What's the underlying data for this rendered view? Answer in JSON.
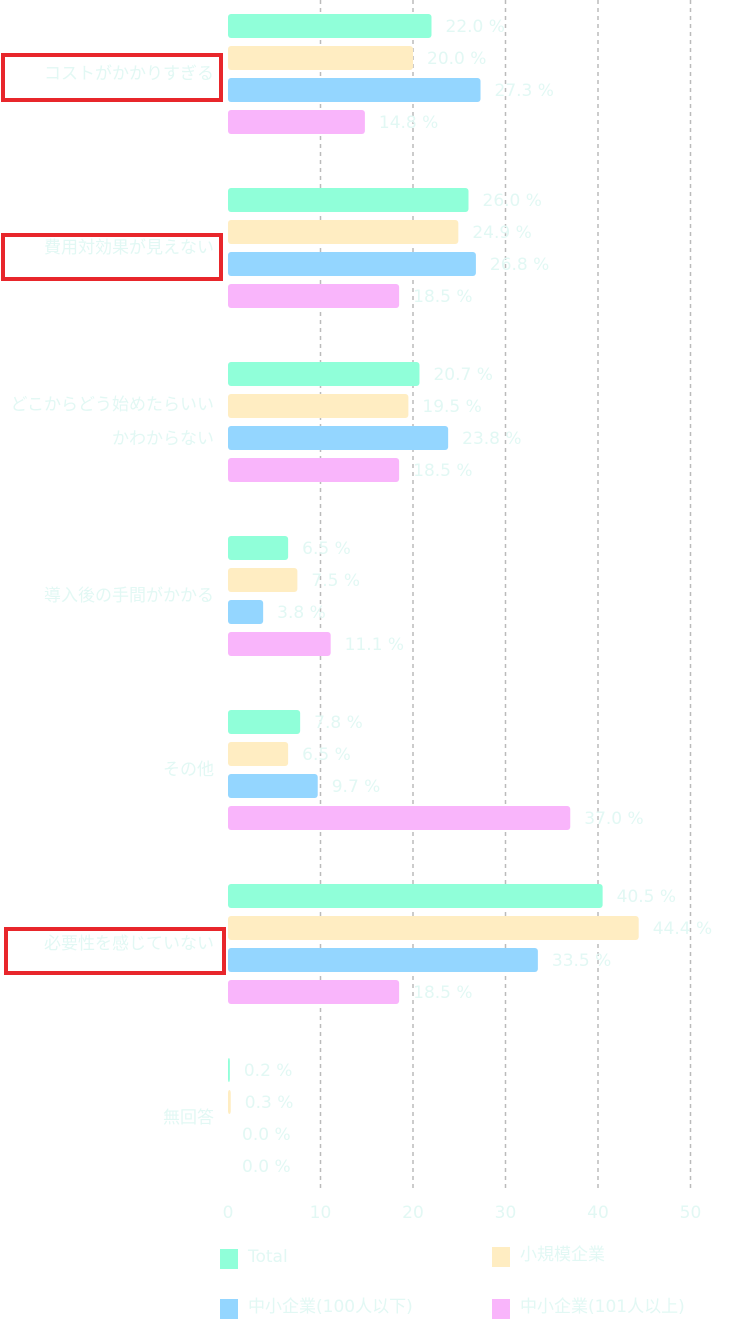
{
  "chart_data": {
    "type": "hbar",
    "categories": [
      "コストがかかりすぎる",
      "費用対効果が見えない",
      "どこからどう始めたらいいかわからない",
      "導入後の手間がかかる",
      "その他",
      "必要性を感じていない",
      "無回答"
    ],
    "series": [
      {
        "name": "Total",
        "color": "#90ffd9",
        "values": [
          22.0,
          26.0,
          20.7,
          6.5,
          7.8,
          40.5,
          0.2
        ],
        "value_labels": [
          "22.0 %",
          "26.0 %",
          "20.7 %",
          "6.5 %",
          "7.8 %",
          "40.5 %",
          "0.2 %"
        ]
      },
      {
        "name": "小規模企業",
        "color": "#ffedc2",
        "values": [
          20.0,
          24.9,
          19.5,
          7.5,
          6.5,
          44.4,
          0.3
        ],
        "value_labels": [
          "20.0 %",
          "24.9 %",
          "19.5 %",
          "7.5 %",
          "6.5 %",
          "44.4 %",
          "0.3 %"
        ]
      },
      {
        "name": "中小企業(100人以下)",
        "color": "#94d6ff",
        "values": [
          27.3,
          26.8,
          23.8,
          3.8,
          9.7,
          33.5,
          0.0
        ],
        "value_labels": [
          "27.3 %",
          "26.8 %",
          "23.8 %",
          "3.8 %",
          "9.7 %",
          "33.5 %",
          "0.0 %"
        ]
      },
      {
        "name": "中小企業(101人以上)",
        "color": "#f9b5fb",
        "values": [
          14.8,
          18.5,
          18.5,
          11.1,
          37.0,
          18.5,
          0.0
        ],
        "value_labels": [
          "14.8 %",
          "18.5 %",
          "18.5 %",
          "11.1 %",
          "37.0 %",
          "18.5 %",
          "0.0 %"
        ]
      }
    ],
    "xlim": [
      0,
      56
    ],
    "xticks": [
      0,
      10,
      20,
      30,
      40,
      50
    ],
    "grid": true
  }
}
